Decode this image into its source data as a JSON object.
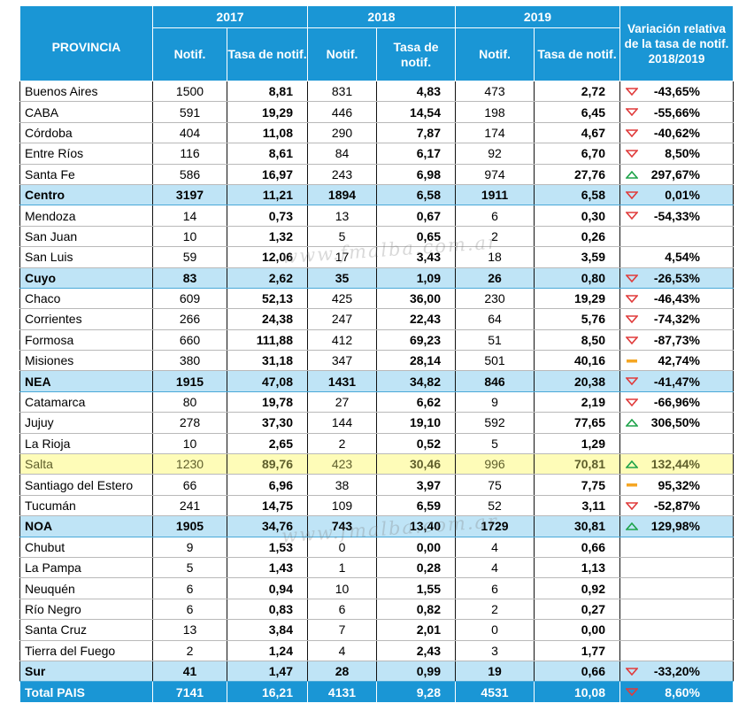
{
  "headers": {
    "provincia": "PROVINCIA",
    "years": [
      "2017",
      "2018",
      "2019"
    ],
    "notif": "Notif.",
    "tasa": "Tasa de notif.",
    "variacion": "Variación relativa de la tasa de notif. 2018/2019"
  },
  "colors": {
    "header_blue": "#1a96d5",
    "region_row": "#bfe4f6",
    "highlight_row": "#fefcb8",
    "down_red": "#e03c3c",
    "up_green": "#1ea34a",
    "flat_orange": "#f5a623"
  },
  "watermark": "www.fmalba.com.ar",
  "rows": [
    {
      "name": "Buenos Aires",
      "n17": "1500",
      "t17": "8,81",
      "n18": "831",
      "t18": "4,83",
      "n19": "473",
      "t19": "2,72",
      "var": "-43,65%",
      "trend": "down",
      "kind": "prov"
    },
    {
      "name": "CABA",
      "n17": "591",
      "t17": "19,29",
      "n18": "446",
      "t18": "14,54",
      "n19": "198",
      "t19": "6,45",
      "var": "-55,66%",
      "trend": "down",
      "kind": "prov"
    },
    {
      "name": "Córdoba",
      "n17": "404",
      "t17": "11,08",
      "n18": "290",
      "t18": "7,87",
      "n19": "174",
      "t19": "4,67",
      "var": "-40,62%",
      "trend": "down",
      "kind": "prov"
    },
    {
      "name": "Entre Ríos",
      "n17": "116",
      "t17": "8,61",
      "n18": "84",
      "t18": "6,17",
      "n19": "92",
      "t19": "6,70",
      "var": "8,50%",
      "trend": "down",
      "kind": "prov"
    },
    {
      "name": "Santa Fe",
      "n17": "586",
      "t17": "16,97",
      "n18": "243",
      "t18": "6,98",
      "n19": "974",
      "t19": "27,76",
      "var": "297,67%",
      "trend": "up",
      "kind": "prov"
    },
    {
      "name": "Centro",
      "n17": "3197",
      "t17": "11,21",
      "n18": "1894",
      "t18": "6,58",
      "n19": "1911",
      "t19": "6,58",
      "var": "0,01%",
      "trend": "down",
      "kind": "region"
    },
    {
      "name": "Mendoza",
      "n17": "14",
      "t17": "0,73",
      "n18": "13",
      "t18": "0,67",
      "n19": "6",
      "t19": "0,30",
      "var": "-54,33%",
      "trend": "down",
      "kind": "prov"
    },
    {
      "name": "San Juan",
      "n17": "10",
      "t17": "1,32",
      "n18": "5",
      "t18": "0,65",
      "n19": "2",
      "t19": "0,26",
      "var": "",
      "trend": "none",
      "kind": "prov"
    },
    {
      "name": "San Luis",
      "n17": "59",
      "t17": "12,06",
      "n18": "17",
      "t18": "3,43",
      "n19": "18",
      "t19": "3,59",
      "var": "4,54%",
      "trend": "none",
      "kind": "prov"
    },
    {
      "name": "Cuyo",
      "n17": "83",
      "t17": "2,62",
      "n18": "35",
      "t18": "1,09",
      "n19": "26",
      "t19": "0,80",
      "var": "-26,53%",
      "trend": "down",
      "kind": "region"
    },
    {
      "name": "Chaco",
      "n17": "609",
      "t17": "52,13",
      "n18": "425",
      "t18": "36,00",
      "n19": "230",
      "t19": "19,29",
      "var": "-46,43%",
      "trend": "down",
      "kind": "prov"
    },
    {
      "name": "Corrientes",
      "n17": "266",
      "t17": "24,38",
      "n18": "247",
      "t18": "22,43",
      "n19": "64",
      "t19": "5,76",
      "var": "-74,32%",
      "trend": "down",
      "kind": "prov"
    },
    {
      "name": "Formosa",
      "n17": "660",
      "t17": "111,88",
      "n18": "412",
      "t18": "69,23",
      "n19": "51",
      "t19": "8,50",
      "var": "-87,73%",
      "trend": "down",
      "kind": "prov"
    },
    {
      "name": "Misiones",
      "n17": "380",
      "t17": "31,18",
      "n18": "347",
      "t18": "28,14",
      "n19": "501",
      "t19": "40,16",
      "var": "42,74%",
      "trend": "flat",
      "kind": "prov"
    },
    {
      "name": "NEA",
      "n17": "1915",
      "t17": "47,08",
      "n18": "1431",
      "t18": "34,82",
      "n19": "846",
      "t19": "20,38",
      "var": "-41,47%",
      "trend": "down",
      "kind": "region"
    },
    {
      "name": "Catamarca",
      "n17": "80",
      "t17": "19,78",
      "n18": "27",
      "t18": "6,62",
      "n19": "9",
      "t19": "2,19",
      "var": "-66,96%",
      "trend": "down",
      "kind": "prov"
    },
    {
      "name": "Jujuy",
      "n17": "278",
      "t17": "37,30",
      "n18": "144",
      "t18": "19,10",
      "n19": "592",
      "t19": "77,65",
      "var": "306,50%",
      "trend": "up",
      "kind": "prov"
    },
    {
      "name": "La Rioja",
      "n17": "10",
      "t17": "2,65",
      "n18": "2",
      "t18": "0,52",
      "n19": "5",
      "t19": "1,29",
      "var": "",
      "trend": "none",
      "kind": "prov"
    },
    {
      "name": "Salta",
      "n17": "1230",
      "t17": "89,76",
      "n18": "423",
      "t18": "30,46",
      "n19": "996",
      "t19": "70,81",
      "var": "132,44%",
      "trend": "up",
      "kind": "highlight"
    },
    {
      "name": "Santiago del Estero",
      "n17": "66",
      "t17": "6,96",
      "n18": "38",
      "t18": "3,97",
      "n19": "75",
      "t19": "7,75",
      "var": "95,32%",
      "trend": "flat",
      "kind": "prov"
    },
    {
      "name": "Tucumán",
      "n17": "241",
      "t17": "14,75",
      "n18": "109",
      "t18": "6,59",
      "n19": "52",
      "t19": "3,11",
      "var": "-52,87%",
      "trend": "down",
      "kind": "prov"
    },
    {
      "name": "NOA",
      "n17": "1905",
      "t17": "34,76",
      "n18": "743",
      "t18": "13,40",
      "n19": "1729",
      "t19": "30,81",
      "var": "129,98%",
      "trend": "up",
      "kind": "region"
    },
    {
      "name": "Chubut",
      "n17": "9",
      "t17": "1,53",
      "n18": "0",
      "t18": "0,00",
      "n19": "4",
      "t19": "0,66",
      "var": "",
      "trend": "none",
      "kind": "prov"
    },
    {
      "name": "La Pampa",
      "n17": "5",
      "t17": "1,43",
      "n18": "1",
      "t18": "0,28",
      "n19": "4",
      "t19": "1,13",
      "var": "",
      "trend": "none",
      "kind": "prov"
    },
    {
      "name": "Neuquén",
      "n17": "6",
      "t17": "0,94",
      "n18": "10",
      "t18": "1,55",
      "n19": "6",
      "t19": "0,92",
      "var": "",
      "trend": "none",
      "kind": "prov"
    },
    {
      "name": "Río Negro",
      "n17": "6",
      "t17": "0,83",
      "n18": "6",
      "t18": "0,82",
      "n19": "2",
      "t19": "0,27",
      "var": "",
      "trend": "none",
      "kind": "prov"
    },
    {
      "name": "Santa Cruz",
      "n17": "13",
      "t17": "3,84",
      "n18": "7",
      "t18": "2,01",
      "n19": "0",
      "t19": "0,00",
      "var": "",
      "trend": "none",
      "kind": "prov"
    },
    {
      "name": "Tierra del Fuego",
      "n17": "2",
      "t17": "1,24",
      "n18": "4",
      "t18": "2,43",
      "n19": "3",
      "t19": "1,77",
      "var": "",
      "trend": "none",
      "kind": "prov"
    },
    {
      "name": "Sur",
      "n17": "41",
      "t17": "1,47",
      "n18": "28",
      "t18": "0,99",
      "n19": "19",
      "t19": "0,66",
      "var": "-33,20%",
      "trend": "down",
      "kind": "region"
    },
    {
      "name": "Total PAIS",
      "n17": "7141",
      "t17": "16,21",
      "n18": "4131",
      "t18": "9,28",
      "n19": "4531",
      "t19": "10,08",
      "var": "8,60%",
      "trend": "down",
      "kind": "total"
    }
  ]
}
